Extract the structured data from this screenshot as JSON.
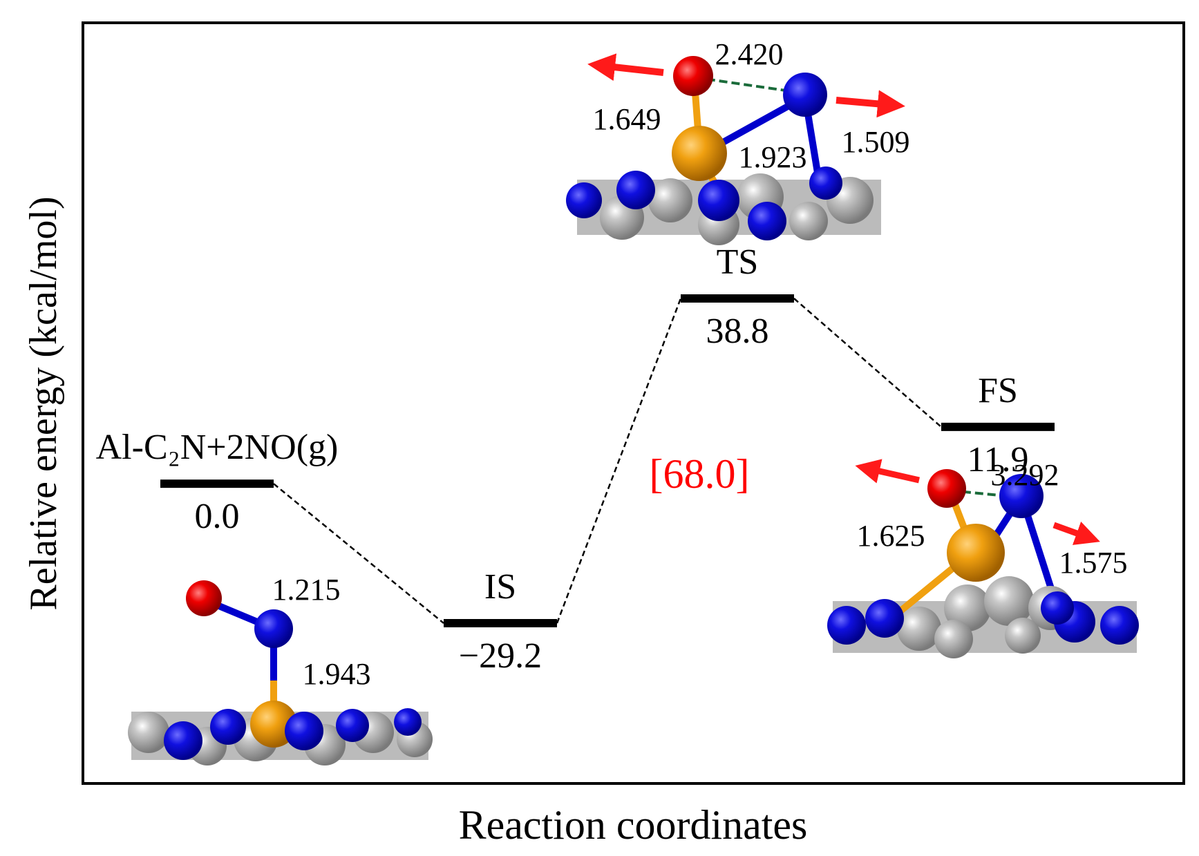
{
  "chart_data": {
    "type": "energy-profile",
    "x_label": "Reaction coordinates",
    "y_label": "Relative energy (kcal/mol)",
    "categories": [
      "Al-C₂N+2NO(g)",
      "IS",
      "TS",
      "FS"
    ],
    "values": [
      0.0,
      -29.2,
      38.8,
      11.9
    ],
    "value_labels": [
      "0.0",
      "−29.2",
      "38.8",
      "11.9"
    ],
    "color": "#000000",
    "connector_style": "dashed",
    "annotations": [
      {
        "text": "[68.0]",
        "color": "#ff0000"
      }
    ],
    "structures": [
      {
        "distances": [
          "1.215",
          "1.943"
        ]
      },
      {
        "distances": [
          "2.420",
          "1.649",
          "1.923",
          "1.509"
        ]
      },
      {
        "distances": [
          "3.292",
          "1.625",
          "1.575"
        ]
      }
    ]
  }
}
